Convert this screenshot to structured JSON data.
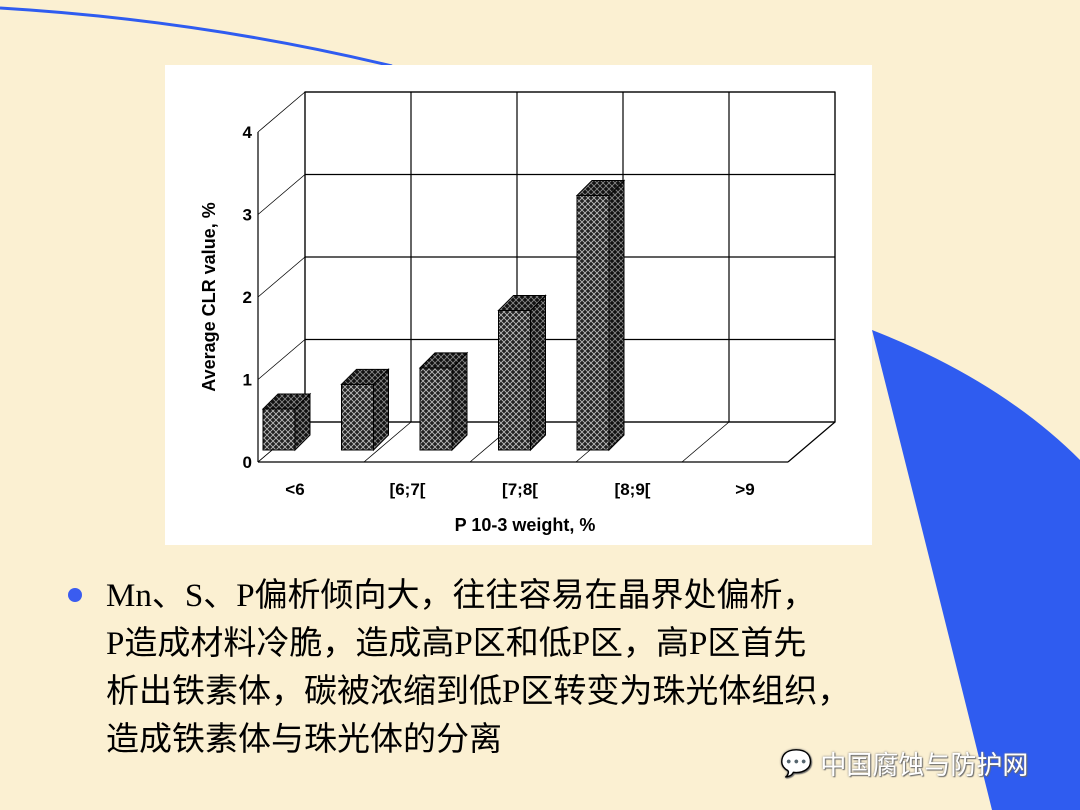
{
  "colors": {
    "background": "#fbf0d2",
    "accent_blue": "#2f5cf0",
    "bar_fill": "#333333"
  },
  "chart_data": {
    "type": "bar",
    "style": "3d",
    "categories": [
      "<6",
      "[6;7[",
      "[7;8[",
      "[8;9[",
      ">9"
    ],
    "values": [
      0.5,
      0.8,
      1.0,
      1.7,
      3.1
    ],
    "xlabel": "P 10-3 weight, %",
    "ylabel": "Average CLR value, %",
    "ylim": [
      0,
      4
    ],
    "yticks": [
      "0",
      "1",
      "2",
      "3",
      "4"
    ],
    "grid": true
  },
  "bullet": {
    "icon": "bullet-dot",
    "lines": [
      "Mn、S、P偏析倾向大，往往容易在晶界处偏析，",
      "P造成材料冷脆，造成高P区和低P区，高P区首先",
      "析出铁素体，碳被浓缩到低P区转变为珠光体组织，",
      "造成铁素体与珠光体的分离"
    ]
  },
  "watermark": {
    "icon": "wechat-icon",
    "text": "中国腐蚀与防护网"
  }
}
